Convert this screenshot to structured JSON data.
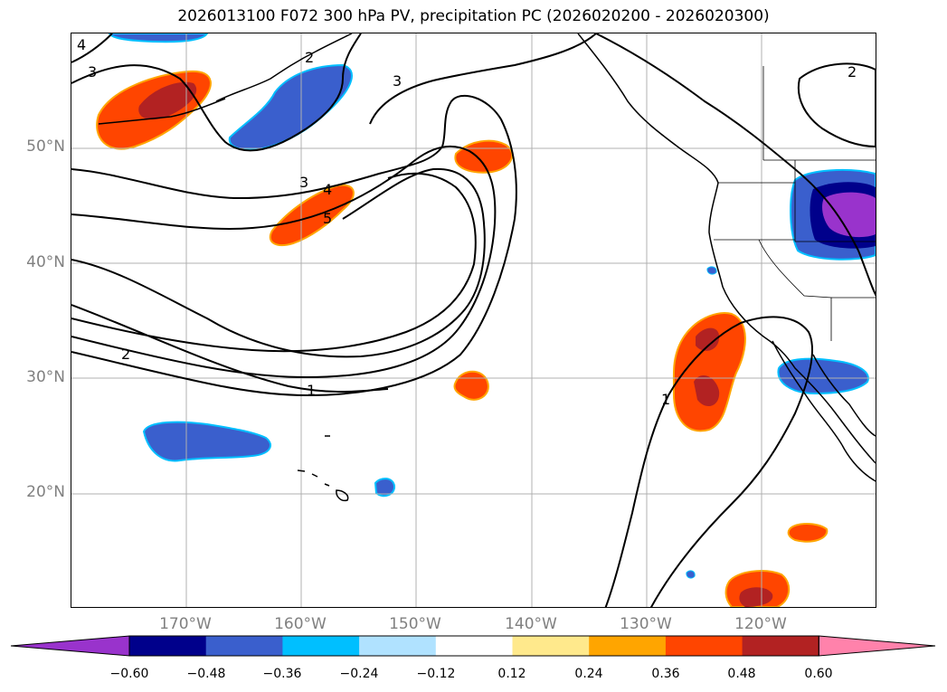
{
  "title": "2026013100 F072 300 hPa PV, precipitation PC (2026020200 - 2026020300)",
  "map": {
    "projection": "PlateCarree",
    "lon_range": [
      -180,
      -110
    ],
    "lat_range": [
      10,
      60
    ],
    "gridlines": true,
    "lat_labels": [
      "50°N",
      "40°N",
      "30°N",
      "20°N"
    ],
    "lon_labels": [
      "170°W",
      "160°W",
      "150°W",
      "140°W",
      "130°W",
      "120°W"
    ],
    "contour_labels": [
      "4",
      "3",
      "2",
      "3",
      "3",
      "4",
      "5",
      "2",
      "1",
      "1",
      "2"
    ],
    "land_features": [
      "north-america-coastline",
      "alaska-panhandle",
      "aleutian-islands",
      "hawaiian-islands",
      "baja-california",
      "us-state-borders"
    ]
  },
  "colorbar": {
    "extend": "both",
    "ticks": [
      "−0.60",
      "−0.48",
      "−0.36",
      "−0.24",
      "−0.12",
      "0.12",
      "0.24",
      "0.36",
      "0.48",
      "0.60"
    ],
    "colors": [
      "#9933cc",
      "#00008b",
      "#3a5fcd",
      "#00bfff",
      "#b0e2ff",
      "#ffffff",
      "#ffe98c",
      "#ffa500",
      "#ff4500",
      "#b22222",
      "#ff82ab"
    ]
  }
}
